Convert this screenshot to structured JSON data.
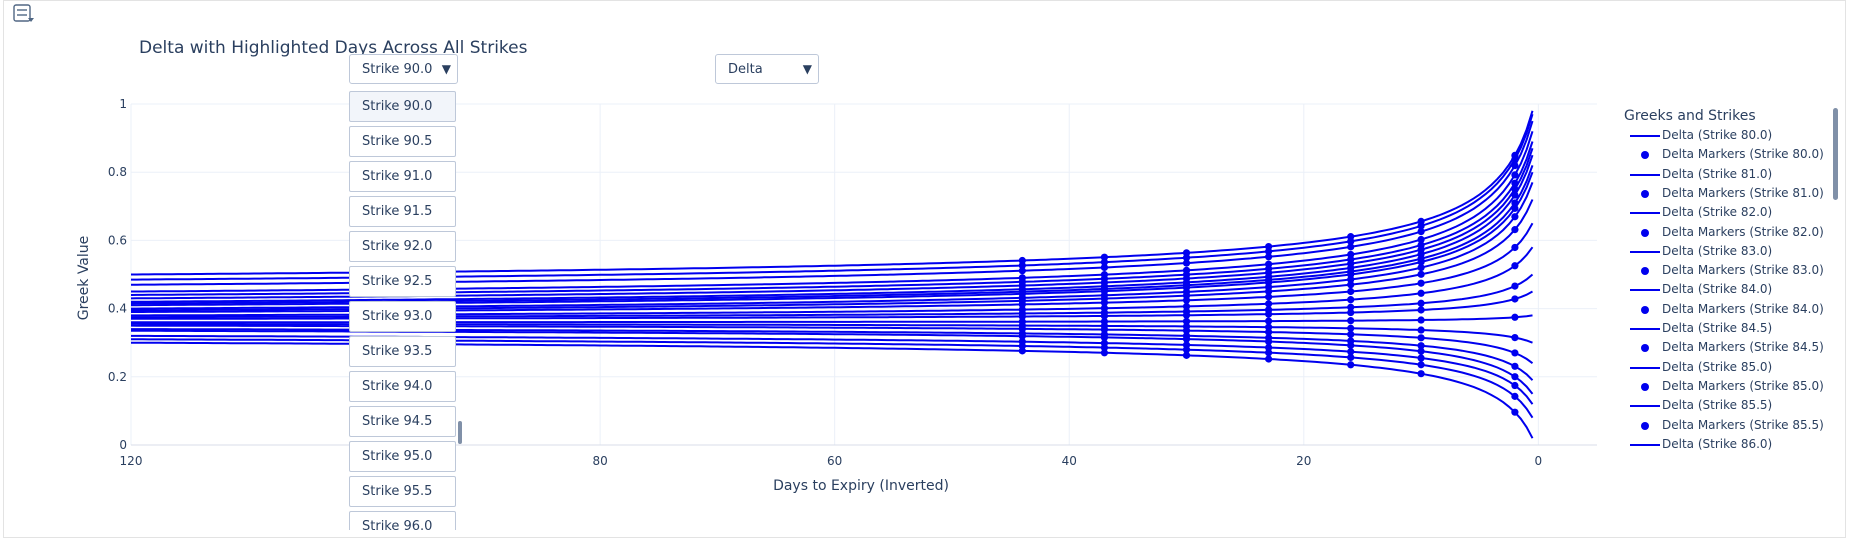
{
  "title": "Delta with Highlighted Days Across All Strikes",
  "strike_dropdown": {
    "selected": "Strike 90.0",
    "options": [
      "Strike 90.0",
      "Strike 90.5",
      "Strike 91.0",
      "Strike 91.5",
      "Strike 92.0",
      "Strike 92.5",
      "Strike 93.0",
      "Strike 93.5",
      "Strike 94.0",
      "Strike 94.5",
      "Strike 95.0",
      "Strike 95.5",
      "Strike 96.0"
    ]
  },
  "greek_dropdown": {
    "selected": "Delta"
  },
  "icons": {
    "mode": "sliders-icon",
    "caret": "▼"
  },
  "colors": {
    "series": "#0000ee",
    "text": "#2a3f5f",
    "grid": "#ebf0f8"
  },
  "chart_data": {
    "type": "line",
    "title": "Delta with Highlighted Days Across All Strikes",
    "xlabel": "Days to Expiry (Inverted)",
    "ylabel": "Greek Value",
    "x_reversed": true,
    "xlim": [
      120,
      -5
    ],
    "ylim": [
      0,
      1.0
    ],
    "x_ticks": [
      120,
      80,
      60,
      40,
      20,
      0
    ],
    "x_tick_labels": [
      "120",
      "80",
      "60",
      "40",
      "20",
      "0"
    ],
    "y_ticks": [
      0,
      0.2,
      0.4,
      0.6,
      0.8,
      1
    ],
    "y_tick_labels": [
      "0",
      "0.2",
      "0.4",
      "0.6",
      "0.8",
      "1"
    ],
    "grid": true,
    "legend_title": "Greeks and Strikes",
    "legend_placement": "right",
    "legend_entries": [
      {
        "label": "Delta (Strike 80.0)",
        "kind": "line"
      },
      {
        "label": "Delta Markers (Strike 80.0)",
        "kind": "marker"
      },
      {
        "label": "Delta (Strike 81.0)",
        "kind": "line"
      },
      {
        "label": "Delta Markers (Strike 81.0)",
        "kind": "marker"
      },
      {
        "label": "Delta (Strike 82.0)",
        "kind": "line"
      },
      {
        "label": "Delta Markers (Strike 82.0)",
        "kind": "marker"
      },
      {
        "label": "Delta (Strike 83.0)",
        "kind": "line"
      },
      {
        "label": "Delta Markers (Strike 83.0)",
        "kind": "marker"
      },
      {
        "label": "Delta (Strike 84.0)",
        "kind": "line"
      },
      {
        "label": "Delta Markers (Strike 84.0)",
        "kind": "marker"
      },
      {
        "label": "Delta (Strike 84.5)",
        "kind": "line"
      },
      {
        "label": "Delta Markers (Strike 84.5)",
        "kind": "marker"
      },
      {
        "label": "Delta (Strike 85.0)",
        "kind": "line"
      },
      {
        "label": "Delta Markers (Strike 85.0)",
        "kind": "marker"
      },
      {
        "label": "Delta (Strike 85.5)",
        "kind": "line"
      },
      {
        "label": "Delta Markers (Strike 85.5)",
        "kind": "marker"
      },
      {
        "label": "Delta (Strike 86.0)",
        "kind": "line"
      }
    ],
    "marker_days": [
      44,
      37,
      30,
      23,
      16,
      10,
      2
    ],
    "series_profile": {
      "start_day": 120,
      "end_day": 0.5,
      "start_values": [
        0.5,
        0.485,
        0.47,
        0.45,
        0.44,
        0.43,
        0.42,
        0.415,
        0.41,
        0.4,
        0.395,
        0.39,
        0.38,
        0.375,
        0.37,
        0.36,
        0.355,
        0.35,
        0.34,
        0.335,
        0.32,
        0.31,
        0.3
      ],
      "end_values": [
        0.98,
        0.97,
        0.95,
        0.92,
        0.89,
        0.87,
        0.85,
        0.82,
        0.8,
        0.77,
        0.72,
        0.65,
        0.58,
        0.5,
        0.45,
        0.38,
        0.3,
        0.24,
        0.19,
        0.15,
        0.12,
        0.08,
        0.02
      ]
    }
  }
}
